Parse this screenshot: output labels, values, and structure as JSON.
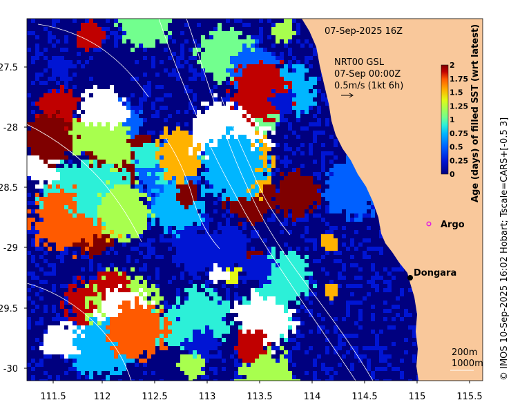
{
  "map": {
    "timestamp": "07-Sep-2025 16Z",
    "product_lines": [
      "NRT00 GSL",
      "07-Sep 00:00Z",
      "0.5m/s (1kt 6h)"
    ],
    "x_ticks": [
      "111.5",
      "112",
      "112.5",
      "113",
      "113.5",
      "114",
      "114.5",
      "115",
      "115.5"
    ],
    "y_ticks": [
      "-27.5",
      "-28",
      "-28.5",
      "-29",
      "-29.5",
      "-30"
    ],
    "places": [
      {
        "name": "Argo",
        "marker": "open-circle",
        "color": "#e020e0"
      },
      {
        "name": "Dongara",
        "marker": "filled-dot",
        "color": "#000000"
      }
    ],
    "contour_labels": [
      "200m",
      "1000m"
    ],
    "credit": "© IMOS 10-Sep-2025 16:02 Hobart; Tscale=CARS+[-0.5 3]",
    "colorbar": {
      "title": "Age (days) of filled SST (wrt latest)",
      "ticks": [
        "2",
        "1.75",
        "1.5",
        "1.25",
        "1",
        "0.75",
        "0.5",
        "0.25",
        "0"
      ]
    },
    "colors": {
      "land": "#f9c89b",
      "age_palette": [
        "#00007f",
        "#0015d4",
        "#0060ff",
        "#00b6ff",
        "#2cf0d8",
        "#72ff8e",
        "#a8ff4e",
        "#e2fa14",
        "#ffb200",
        "#ff5a00",
        "#c00000",
        "#7f0000"
      ]
    }
  }
}
